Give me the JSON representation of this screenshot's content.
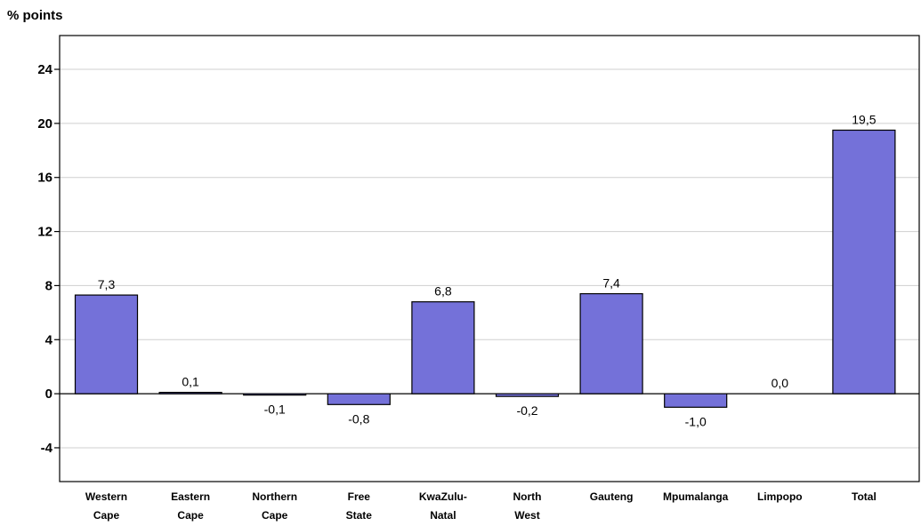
{
  "chart_data": {
    "type": "bar",
    "title": "",
    "xlabel": "",
    "ylabel": "% points",
    "ylim": [
      -6.5,
      26.5
    ],
    "yticks": [
      -4,
      0,
      4,
      8,
      12,
      16,
      20,
      24
    ],
    "grid": true,
    "legend": "none",
    "bar_color": "#7471d9",
    "categories": [
      [
        "Western",
        "Cape"
      ],
      [
        "Eastern",
        "Cape"
      ],
      [
        "Northern",
        "Cape"
      ],
      [
        "Free",
        "State"
      ],
      [
        "KwaZulu-",
        "Natal"
      ],
      [
        "North",
        "West"
      ],
      [
        "Gauteng"
      ],
      [
        "Mpumalanga"
      ],
      [
        "Limpopo"
      ],
      [
        "Total"
      ]
    ],
    "values": [
      7.3,
      0.1,
      -0.1,
      -0.8,
      6.8,
      -0.2,
      7.4,
      -1.0,
      0.0,
      19.5
    ],
    "value_labels": [
      "7,3",
      "0,1",
      "-0,1",
      "-0,8",
      "6,8",
      "-0,2",
      "7,4",
      "-1,0",
      "0,0",
      "19,5"
    ]
  }
}
